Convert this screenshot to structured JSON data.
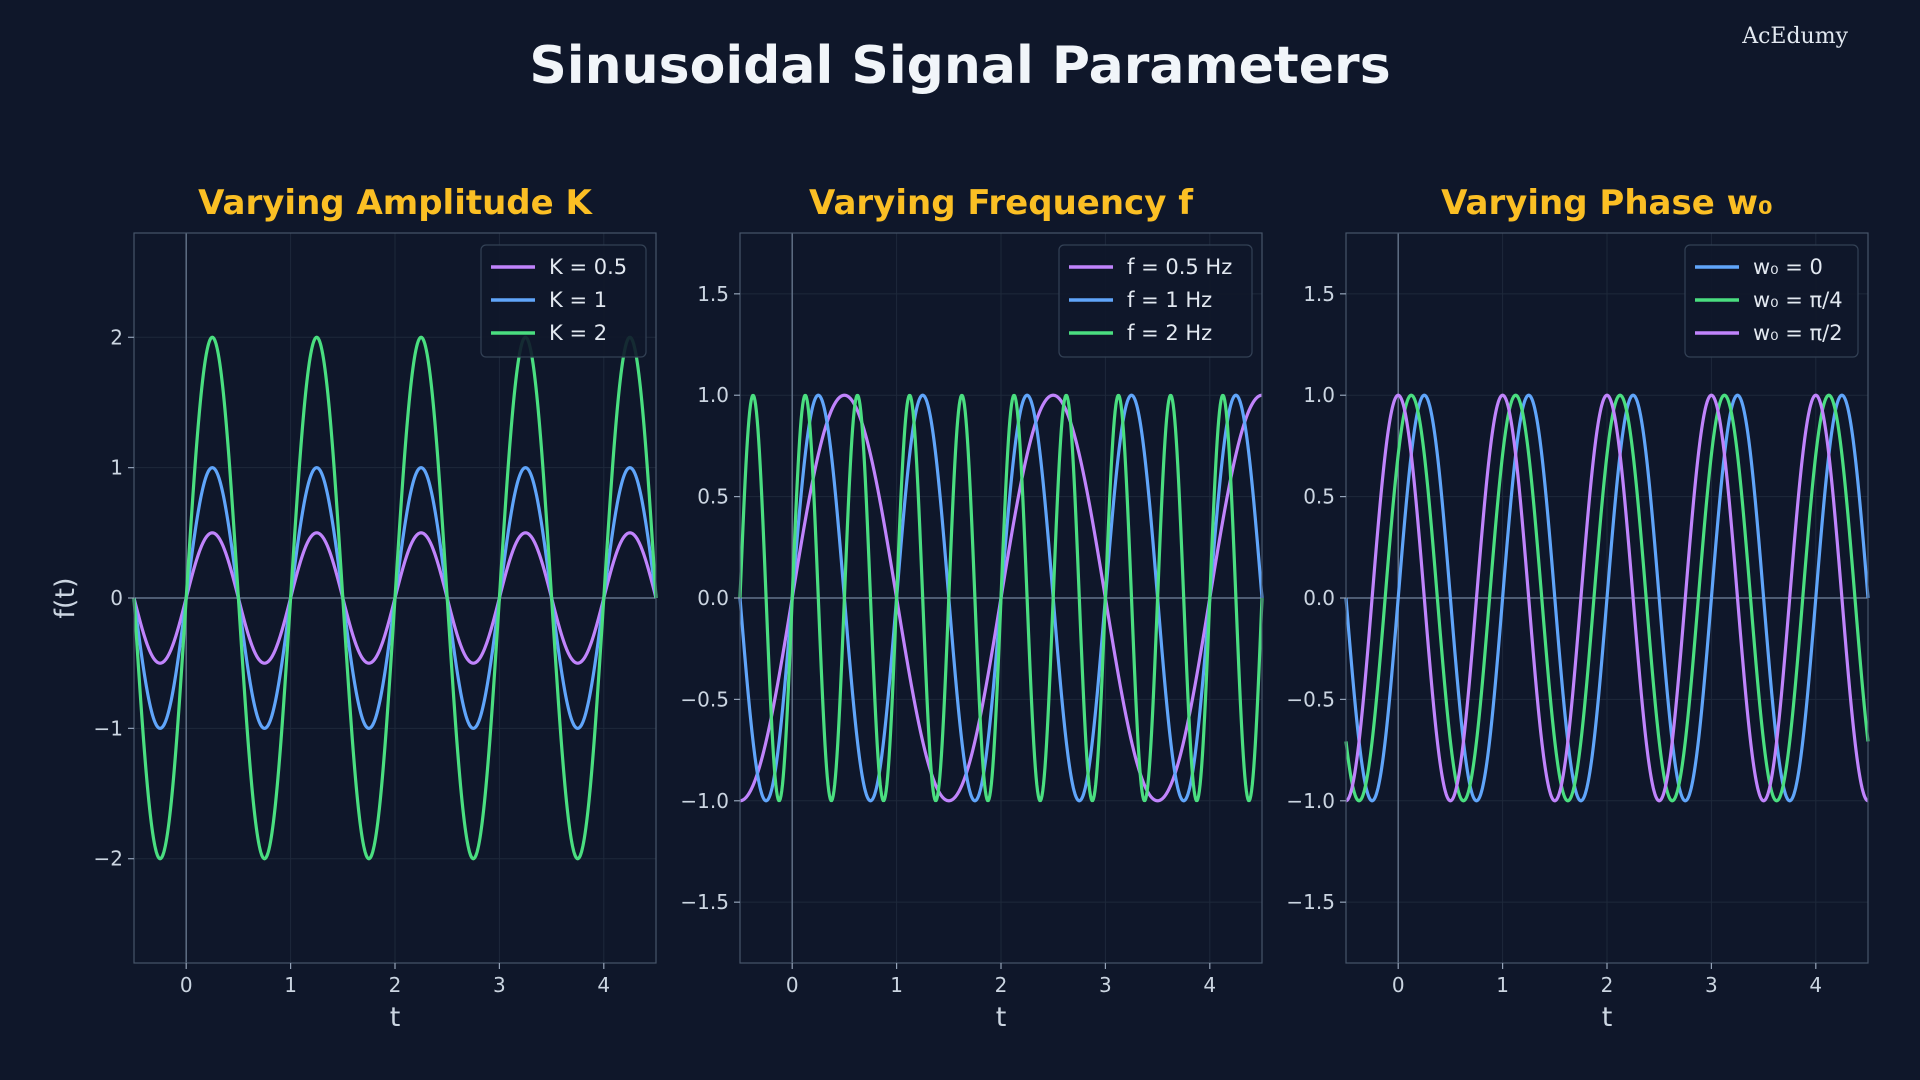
{
  "header": {
    "title": "Sinusoidal Signal Parameters",
    "watermark": "AcEdumy"
  },
  "colors": {
    "background": "#0f172a",
    "title_accent": "#fbbf24",
    "purple": "#c084fc",
    "blue": "#60a5fa",
    "green": "#4ade80"
  },
  "chart_data": [
    {
      "type": "line",
      "title": "Varying Amplitude K",
      "xlabel": "t",
      "ylabel": "f(t)",
      "xlim": [
        -0.5,
        4.5
      ],
      "ylim": [
        -2.8,
        2.8
      ],
      "xticks": [
        0,
        1,
        2,
        3,
        4
      ],
      "xticklabels": [
        "0",
        "1",
        "2",
        "3",
        "4"
      ],
      "yticks": [
        -2,
        -1,
        0,
        1,
        2
      ],
      "yticklabels": [
        "−2",
        "−1",
        "0",
        "1",
        "2"
      ],
      "grid": true,
      "legend_position": "top-right",
      "series": [
        {
          "name": "K = 0.5",
          "color": "#c084fc",
          "amplitude": 0.5,
          "frequency_hz": 1,
          "phase_rad": 0
        },
        {
          "name": "K = 1",
          "color": "#60a5fa",
          "amplitude": 1,
          "frequency_hz": 1,
          "phase_rad": 0
        },
        {
          "name": "K = 2",
          "color": "#4ade80",
          "amplitude": 2,
          "frequency_hz": 1,
          "phase_rad": 0
        }
      ]
    },
    {
      "type": "line",
      "title": "Varying Frequency f",
      "xlabel": "t",
      "ylabel": "",
      "xlim": [
        -0.5,
        4.5
      ],
      "ylim": [
        -1.8,
        1.8
      ],
      "xticks": [
        0,
        1,
        2,
        3,
        4
      ],
      "xticklabels": [
        "0",
        "1",
        "2",
        "3",
        "4"
      ],
      "yticks": [
        -1.5,
        -1.0,
        -0.5,
        0.0,
        0.5,
        1.0,
        1.5
      ],
      "yticklabels": [
        "−1.5",
        "−1.0",
        "−0.5",
        "0.0",
        "0.5",
        "1.0",
        "1.5"
      ],
      "grid": true,
      "legend_position": "top-right",
      "series": [
        {
          "name": "f = 0.5 Hz",
          "color": "#c084fc",
          "amplitude": 1,
          "frequency_hz": 0.5,
          "phase_rad": 0
        },
        {
          "name": "f = 1 Hz",
          "color": "#60a5fa",
          "amplitude": 1,
          "frequency_hz": 1,
          "phase_rad": 0
        },
        {
          "name": "f = 2 Hz",
          "color": "#4ade80",
          "amplitude": 1,
          "frequency_hz": 2,
          "phase_rad": 0
        }
      ]
    },
    {
      "type": "line",
      "title": "Varying Phase w₀",
      "xlabel": "t",
      "ylabel": "",
      "xlim": [
        -0.5,
        4.5
      ],
      "ylim": [
        -1.8,
        1.8
      ],
      "xticks": [
        0,
        1,
        2,
        3,
        4
      ],
      "xticklabels": [
        "0",
        "1",
        "2",
        "3",
        "4"
      ],
      "yticks": [
        -1.5,
        -1.0,
        -0.5,
        0.0,
        0.5,
        1.0,
        1.5
      ],
      "yticklabels": [
        "−1.5",
        "−1.0",
        "−0.5",
        "0.0",
        "0.5",
        "1.0",
        "1.5"
      ],
      "grid": true,
      "legend_position": "top-right",
      "series": [
        {
          "name": "w₀ = 0",
          "color": "#60a5fa",
          "amplitude": 1,
          "frequency_hz": 1,
          "phase_rad": 0
        },
        {
          "name": "w₀ = π/4",
          "color": "#4ade80",
          "amplitude": 1,
          "frequency_hz": 1,
          "phase_rad": 0.7853981634
        },
        {
          "name": "w₀ = π/2",
          "color": "#c084fc",
          "amplitude": 1,
          "frequency_hz": 1,
          "phase_rad": 1.5707963268
        }
      ]
    }
  ]
}
